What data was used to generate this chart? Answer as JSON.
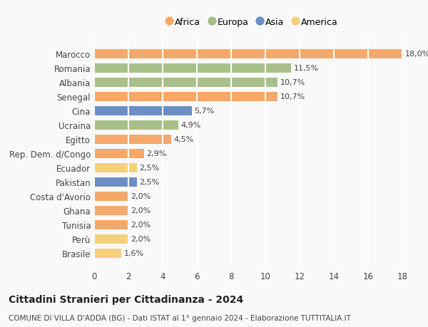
{
  "countries": [
    "Marocco",
    "Romania",
    "Albania",
    "Senegal",
    "Cina",
    "Ucraina",
    "Egitto",
    "Rep. Dem. d/Congo",
    "Ecuador",
    "Pakistan",
    "Costa d'Avorio",
    "Ghana",
    "Tunisia",
    "Perù",
    "Brasile"
  ],
  "values": [
    18.0,
    11.5,
    10.7,
    10.7,
    5.7,
    4.9,
    4.5,
    2.9,
    2.5,
    2.5,
    2.0,
    2.0,
    2.0,
    2.0,
    1.6
  ],
  "continents": [
    "Africa",
    "Europa",
    "Europa",
    "Africa",
    "Asia",
    "Europa",
    "Africa",
    "Africa",
    "America",
    "Asia",
    "Africa",
    "Africa",
    "Africa",
    "America",
    "America"
  ],
  "labels": [
    "18,0%",
    "11,5%",
    "10,7%",
    "10,7%",
    "5,7%",
    "4,9%",
    "4,5%",
    "2,9%",
    "2,5%",
    "2,5%",
    "2,0%",
    "2,0%",
    "2,0%",
    "2,0%",
    "1,6%"
  ],
  "colors": {
    "Africa": "#F4A86A",
    "Europa": "#A8BF8A",
    "Asia": "#6B8EC4",
    "America": "#F5D07A"
  },
  "legend_order": [
    "Africa",
    "Europa",
    "Asia",
    "America"
  ],
  "title": "Cittadini Stranieri per Cittadinanza - 2024",
  "subtitle": "COMUNE DI VILLA D'ADDA (BG) - Dati ISTAT al 1° gennaio 2024 - Elaborazione TUTTITALIA.IT",
  "xlim": [
    0,
    18
  ],
  "xticks": [
    0,
    2,
    4,
    6,
    8,
    10,
    12,
    14,
    16,
    18
  ],
  "background_color": "#f9f9f9",
  "grid_color": "#ffffff",
  "bar_height": 0.65
}
